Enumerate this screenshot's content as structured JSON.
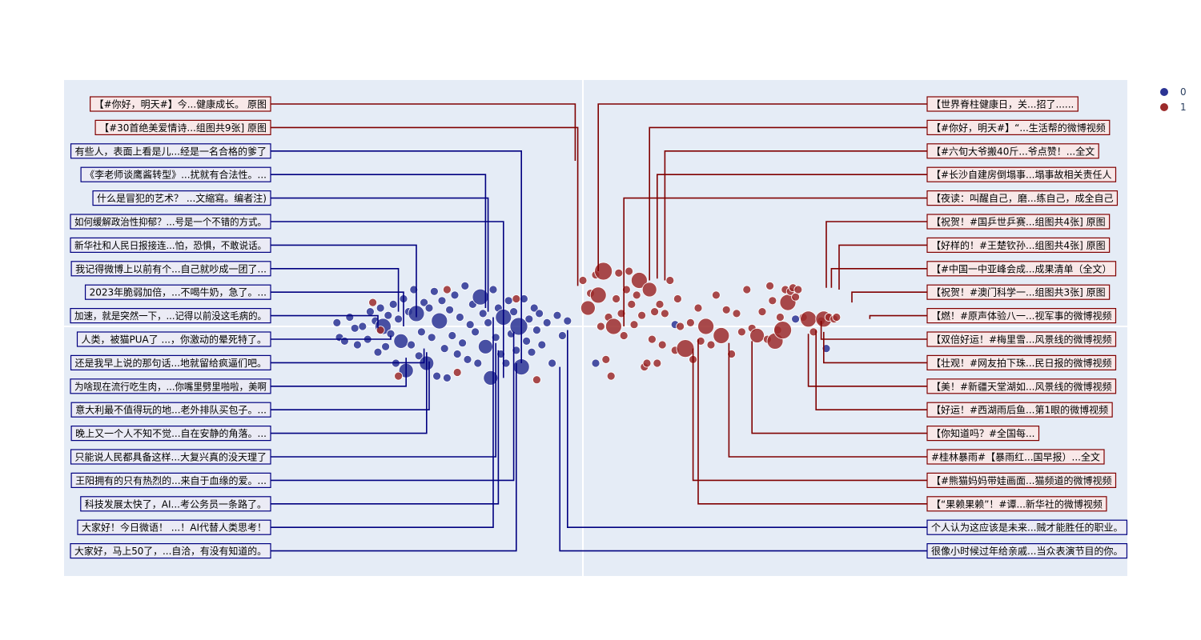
{
  "chart_data": {
    "type": "scatter",
    "title": "",
    "xlabel": "",
    "ylabel": "",
    "xlim": [
      -1,
      1
    ],
    "ylim": [
      -1,
      1
    ],
    "grid": true,
    "legend_position": "top-right",
    "colors": {
      "plot_bg": "#e5ecf6",
      "grid": "#ffffff",
      "series_0": "#2b3494",
      "series_1": "#9c2b2b",
      "line_0": "#000080",
      "line_1": "#800000",
      "box_bg_0": "#ebebf5",
      "box_bg_1": "#f8e8e8"
    },
    "series": [
      {
        "name": "0",
        "points": [
          {
            "x": -0.96,
            "y": 0.02
          },
          {
            "x": -0.95,
            "y": -0.06
          },
          {
            "x": -0.93,
            "y": -0.08
          },
          {
            "x": -0.91,
            "y": 0.05
          },
          {
            "x": -0.89,
            "y": -0.01
          },
          {
            "x": -0.88,
            "y": -0.1
          },
          {
            "x": -0.86,
            "y": 0.0
          },
          {
            "x": -0.84,
            "y": -0.07
          },
          {
            "x": -0.83,
            "y": 0.08
          },
          {
            "x": -0.81,
            "y": 0.03
          },
          {
            "x": -0.8,
            "y": -0.14
          },
          {
            "x": -0.79,
            "y": 0.1
          },
          {
            "x": -0.78,
            "y": 0.0,
            "r": 10
          },
          {
            "x": -0.77,
            "y": -0.11
          },
          {
            "x": -0.76,
            "y": 0.06
          },
          {
            "x": -0.75,
            "y": -0.04
          },
          {
            "x": -0.74,
            "y": 0.12
          },
          {
            "x": -0.73,
            "y": -0.2
          },
          {
            "x": -0.72,
            "y": 0.04
          },
          {
            "x": -0.71,
            "y": -0.08,
            "r": 9
          },
          {
            "x": -0.7,
            "y": 0.15
          },
          {
            "x": -0.69,
            "y": -0.24,
            "r": 9
          },
          {
            "x": -0.68,
            "y": 0.08
          },
          {
            "x": -0.67,
            "y": -0.1
          },
          {
            "x": -0.66,
            "y": 0.2
          },
          {
            "x": -0.65,
            "y": 0.07,
            "r": 10
          },
          {
            "x": -0.64,
            "y": -0.16
          },
          {
            "x": -0.63,
            "y": -0.03
          },
          {
            "x": -0.62,
            "y": 0.13
          },
          {
            "x": -0.61,
            "y": -0.2,
            "r": 9
          },
          {
            "x": -0.6,
            "y": 0.1
          },
          {
            "x": -0.59,
            "y": -0.06
          },
          {
            "x": -0.58,
            "y": 0.19
          },
          {
            "x": -0.57,
            "y": -0.27
          },
          {
            "x": -0.56,
            "y": 0.03,
            "r": 10
          },
          {
            "x": -0.55,
            "y": 0.14
          },
          {
            "x": -0.54,
            "y": -0.12
          },
          {
            "x": -0.53,
            "y": -0.28
          },
          {
            "x": -0.52,
            "y": 0.09
          },
          {
            "x": -0.51,
            "y": -0.05
          },
          {
            "x": -0.5,
            "y": 0.17
          },
          {
            "x": -0.49,
            "y": -0.15
          },
          {
            "x": -0.48,
            "y": 0.05
          },
          {
            "x": -0.47,
            "y": -0.09
          },
          {
            "x": -0.46,
            "y": 0.22
          },
          {
            "x": -0.45,
            "y": -0.18
          },
          {
            "x": -0.44,
            "y": 0.01
          },
          {
            "x": -0.43,
            "y": 0.12
          },
          {
            "x": -0.42,
            "y": -0.03
          },
          {
            "x": -0.41,
            "y": -0.2
          },
          {
            "x": -0.4,
            "y": 0.16,
            "r": 10
          },
          {
            "x": -0.39,
            "y": 0.07
          },
          {
            "x": -0.38,
            "y": -0.11,
            "r": 9
          },
          {
            "x": -0.37,
            "y": 0.02
          },
          {
            "x": -0.36,
            "y": -0.28,
            "r": 9
          },
          {
            "x": -0.35,
            "y": 0.2
          },
          {
            "x": -0.34,
            "y": -0.06
          },
          {
            "x": -0.33,
            "y": 0.1
          },
          {
            "x": -0.32,
            "y": -0.15
          },
          {
            "x": -0.31,
            "y": 0.05,
            "r": 10
          },
          {
            "x": -0.3,
            "y": -0.2
          },
          {
            "x": -0.29,
            "y": 0.14
          },
          {
            "x": -0.28,
            "y": -0.04
          },
          {
            "x": -0.27,
            "y": 0.08
          },
          {
            "x": -0.26,
            "y": -0.13
          },
          {
            "x": -0.25,
            "y": 0.0,
            "r": 11
          },
          {
            "x": -0.24,
            "y": -0.22,
            "r": 10
          },
          {
            "x": -0.23,
            "y": 0.15
          },
          {
            "x": -0.22,
            "y": -0.08
          },
          {
            "x": -0.21,
            "y": 0.04
          },
          {
            "x": -0.2,
            "y": -0.14
          },
          {
            "x": -0.19,
            "y": 0.1
          },
          {
            "x": -0.18,
            "y": -0.02
          },
          {
            "x": -0.17,
            "y": 0.07
          },
          {
            "x": -0.16,
            "y": -0.1
          },
          {
            "x": -0.14,
            "y": 0.02
          },
          {
            "x": -0.12,
            "y": -0.2
          },
          {
            "x": -0.1,
            "y": 0.06
          },
          {
            "x": -0.08,
            "y": -0.05
          },
          {
            "x": -0.06,
            "y": 0.03
          },
          {
            "x": 0.05,
            "y": -0.2
          },
          {
            "x": 0.36,
            "y": 0.01
          },
          {
            "x": 0.83,
            "y": 0.04
          },
          {
            "x": 0.95,
            "y": -0.12
          }
        ]
      },
      {
        "name": "1",
        "points": [
          {
            "x": -0.82,
            "y": 0.13
          },
          {
            "x": -0.79,
            "y": -0.02
          },
          {
            "x": -0.72,
            "y": -0.27
          },
          {
            "x": -0.53,
            "y": 0.2
          },
          {
            "x": -0.49,
            "y": -0.25
          },
          {
            "x": -0.26,
            "y": 0.15
          },
          {
            "x": -0.18,
            "y": -0.29
          },
          {
            "x": 0.0,
            "y": 0.25
          },
          {
            "x": 0.02,
            "y": 0.1,
            "r": 9
          },
          {
            "x": 0.03,
            "y": 0.18
          },
          {
            "x": 0.05,
            "y": 0.28
          },
          {
            "x": 0.06,
            "y": 0.17,
            "r": 10
          },
          {
            "x": 0.07,
            "y": 0.0
          },
          {
            "x": 0.08,
            "y": 0.3,
            "r": 11
          },
          {
            "x": 0.09,
            "y": -0.18
          },
          {
            "x": 0.1,
            "y": 0.05
          },
          {
            "x": 0.11,
            "y": -0.27
          },
          {
            "x": 0.12,
            "y": 0.0,
            "r": 10
          },
          {
            "x": 0.13,
            "y": 0.15
          },
          {
            "x": 0.14,
            "y": 0.29
          },
          {
            "x": 0.15,
            "y": 0.07
          },
          {
            "x": 0.16,
            "y": -0.05
          },
          {
            "x": 0.17,
            "y": 0.2
          },
          {
            "x": 0.18,
            "y": 0.3
          },
          {
            "x": 0.19,
            "y": 0.12
          },
          {
            "x": 0.2,
            "y": 0.01
          },
          {
            "x": 0.21,
            "y": 0.17
          },
          {
            "x": 0.22,
            "y": 0.25,
            "r": 10
          },
          {
            "x": 0.23,
            "y": 0.06
          },
          {
            "x": 0.24,
            "y": -0.22
          },
          {
            "x": 0.25,
            "y": -0.2
          },
          {
            "x": 0.26,
            "y": 0.2,
            "r": 9
          },
          {
            "x": 0.27,
            "y": -0.07
          },
          {
            "x": 0.28,
            "y": 0.08
          },
          {
            "x": 0.29,
            "y": -0.2
          },
          {
            "x": 0.3,
            "y": 0.12
          },
          {
            "x": 0.31,
            "y": -0.1
          },
          {
            "x": 0.32,
            "y": 0.07
          },
          {
            "x": 0.34,
            "y": 0.25
          },
          {
            "x": 0.36,
            "y": -0.13
          },
          {
            "x": 0.37,
            "y": 0.15
          },
          {
            "x": 0.38,
            "y": 0.0
          },
          {
            "x": 0.4,
            "y": -0.12,
            "r": 11
          },
          {
            "x": 0.42,
            "y": 0.02
          },
          {
            "x": 0.43,
            "y": -0.18
          },
          {
            "x": 0.45,
            "y": 0.1
          },
          {
            "x": 0.46,
            "y": -0.08
          },
          {
            "x": 0.48,
            "y": 0.0,
            "r": 10
          },
          {
            "x": 0.5,
            "y": -0.1
          },
          {
            "x": 0.52,
            "y": 0.17
          },
          {
            "x": 0.54,
            "y": -0.05,
            "r": 10
          },
          {
            "x": 0.56,
            "y": 0.09
          },
          {
            "x": 0.58,
            "y": -0.15
          },
          {
            "x": 0.6,
            "y": 0.07
          },
          {
            "x": 0.62,
            "y": -0.03
          },
          {
            "x": 0.64,
            "y": 0.2
          },
          {
            "x": 0.66,
            "y": -0.01
          },
          {
            "x": 0.68,
            "y": -0.05,
            "r": 9
          },
          {
            "x": 0.7,
            "y": 0.08
          },
          {
            "x": 0.72,
            "y": -0.07
          },
          {
            "x": 0.73,
            "y": 0.22
          },
          {
            "x": 0.74,
            "y": 0.14
          },
          {
            "x": 0.75,
            "y": -0.08,
            "r": 10
          },
          {
            "x": 0.76,
            "y": -0.02
          },
          {
            "x": 0.77,
            "y": 0.05
          },
          {
            "x": 0.78,
            "y": -0.02,
            "r": 11
          },
          {
            "x": 0.79,
            "y": 0.2
          },
          {
            "x": 0.8,
            "y": 0.13,
            "r": 10
          },
          {
            "x": 0.81,
            "y": 0.19
          },
          {
            "x": 0.82,
            "y": 0.21
          },
          {
            "x": 0.83,
            "y": 0.16
          },
          {
            "x": 0.84,
            "y": 0.2
          },
          {
            "x": 0.86,
            "y": 0.05
          },
          {
            "x": 0.88,
            "y": 0.04,
            "r": 10
          },
          {
            "x": 0.9,
            "y": -0.03
          },
          {
            "x": 0.93,
            "y": 0.03
          },
          {
            "x": 0.94,
            "y": 0.04,
            "r": 10
          },
          {
            "x": 0.96,
            "y": 0.05
          },
          {
            "x": 0.98,
            "y": 0.04
          },
          {
            "x": 0.99,
            "y": 0.05
          }
        ]
      }
    ],
    "annotations_left": [
      {
        "text": "【#你好，明天#】今...健康成长。 原图",
        "series": "1",
        "x": -0.03,
        "y": 0.9
      },
      {
        "text": "【#30首绝美爱情诗...组图共9张] 原图",
        "series": "1",
        "x": -0.02,
        "y": 0.22
      },
      {
        "text": "有些人，表面上看是儿...经是一名合格的爹了",
        "series": "0",
        "x": -0.24,
        "y": -0.2
      },
      {
        "text": "《李老师谈鹰酱转型》...扰就有合法性。...",
        "series": "0",
        "x": -0.38,
        "y": 0.1
      },
      {
        "text": "什么是冒犯的艺术？ ...文縮寫。编者注)",
        "series": "0",
        "x": -0.37,
        "y": 0.08
      },
      {
        "text": "如何缓解政治性抑郁？...号是一个不错的方式。",
        "series": "0",
        "x": -0.31,
        "y": -0.28
      },
      {
        "text": "新华社和人民日报接连...怕，恐惧，不敢说话。",
        "series": "0",
        "x": -0.65,
        "y": 0.05
      },
      {
        "text": "我记得微博上以前有个...自己就吵成一团了...",
        "series": "0",
        "x": -0.72,
        "y": 0.08
      },
      {
        "text": "2023年脆弱加倍，...不喝牛奶，急了。...",
        "series": "0",
        "x": -0.7,
        "y": 0.0
      },
      {
        "text": "加速，就是突然一下，...记得以前没这毛病的。",
        "series": "0",
        "x": -0.8,
        "y": -0.01
      },
      {
        "text": "人类，被猫PUA了 ...，你激动的晕死特了。",
        "series": "0",
        "x": -0.75,
        "y": -0.05
      },
      {
        "text": "还是我早上说的那句话...地就留给疯逼们吧。",
        "series": "0",
        "x": -0.62,
        "y": -0.12
      },
      {
        "text": "为啥现在流行吃生肉，...你嘴里劈里啪啦，美啊",
        "series": "0",
        "x": -0.69,
        "y": -0.17
      },
      {
        "text": "意大利最不值得玩的地...老外排队买包子。...",
        "series": "0",
        "x": -0.6,
        "y": -0.19
      },
      {
        "text": "晚上又一个人不知不觉...自在安静的角落。...",
        "series": "0",
        "x": -0.61,
        "y": -0.14
      },
      {
        "text": "只能说人民都具备这样...大复兴真的没天理了",
        "series": "0",
        "x": -0.34,
        "y": -0.09
      },
      {
        "text": "王阳拥有的只有热烈的...来自于血缘的爱。...",
        "series": "0",
        "x": -0.27,
        "y": -0.03
      },
      {
        "text": "科技发展太快了，AI...考公务员一条路了。",
        "series": "0",
        "x": -0.33,
        "y": -0.13
      },
      {
        "text": "大家好！今日微语！ ...！AI代替人类思考！",
        "series": "0",
        "x": -0.35,
        "y": 0.05
      },
      {
        "text": "大家好，马上50了，...自洽，有没有知道的。",
        "series": "0",
        "x": -0.26,
        "y": -0.2
      }
    ],
    "annotations_right": [
      {
        "text": "【世界脊柱健康日，关...招了......",
        "series": "1",
        "x": 0.06,
        "y": 0.3
      },
      {
        "text": "【#你好，明天#】“...生活帮的微博视频",
        "series": "1",
        "x": 0.26,
        "y": 0.25
      },
      {
        "text": "【#六旬大爷搬40斤...爷点赞！...全文",
        "series": "1",
        "x": 0.32,
        "y": 0.25
      },
      {
        "text": "【#长沙自建房倒塌事...塌事故相关责任人",
        "series": "1",
        "x": 0.29,
        "y": 0.26
      },
      {
        "text": "【夜读：叫醒自己，磨...练自己，成全自己",
        "series": "1",
        "x": 0.16,
        "y": 0.0
      },
      {
        "text": "【祝贺！#国乒世乒赛...组图共4张] 原图",
        "series": "1",
        "x": 0.95,
        "y": 0.21
      },
      {
        "text": "【好样的！#王楚钦孙...组图共4张] 原图",
        "series": "1",
        "x": 1.0,
        "y": 0.2
      },
      {
        "text": "【#中国一中亚峰会成...成果清单（全文）",
        "series": "1",
        "x": 0.97,
        "y": 0.21
      },
      {
        "text": "【祝贺！#澳门科学一...组图共3张] 原图",
        "series": "1",
        "x": 1.05,
        "y": 0.13
      },
      {
        "text": "【燃！#原声体验八一...视军事的微博视频",
        "series": "1",
        "x": 1.12,
        "y": 0.04
      },
      {
        "text": "【双倍好运！#梅里雪...风景线的微博视频",
        "series": "1",
        "x": 0.93,
        "y": 0.03
      },
      {
        "text": "【壮观！#网友拍下珠...民日报的微博视频",
        "series": "1",
        "x": 0.94,
        "y": -0.03
      },
      {
        "text": "【美！#新疆天堂湖如...风景线的微博视频",
        "series": "1",
        "x": 0.88,
        "y": -0.04
      },
      {
        "text": "【好运！#西湖雨后鱼...第1眼的微博视频",
        "series": "1",
        "x": 0.91,
        "y": -0.02
      },
      {
        "text": "【你知道吗？#全国每...",
        "series": "1",
        "x": 0.66,
        "y": -0.08
      },
      {
        "text": "#桂林暴雨#【暴雨红...国早报）...全文",
        "series": "1",
        "x": 0.57,
        "y": -0.09
      },
      {
        "text": "【#熊猫妈妈带娃画面...猫频道的微博视频",
        "series": "1",
        "x": 0.43,
        "y": -0.12
      },
      {
        "text": "【“果赖果赖”！#谭...新华社的微博视频",
        "series": "1",
        "x": 0.45,
        "y": -0.07
      },
      {
        "text": "个人认为这应该是未来...贼才能胜任的职业。",
        "series": "0",
        "x": -0.06,
        "y": -0.02
      },
      {
        "text": "很像小时候过年给亲戚...当众表演节目的你。",
        "series": "0",
        "x": -0.09,
        "y": -0.22
      }
    ]
  }
}
